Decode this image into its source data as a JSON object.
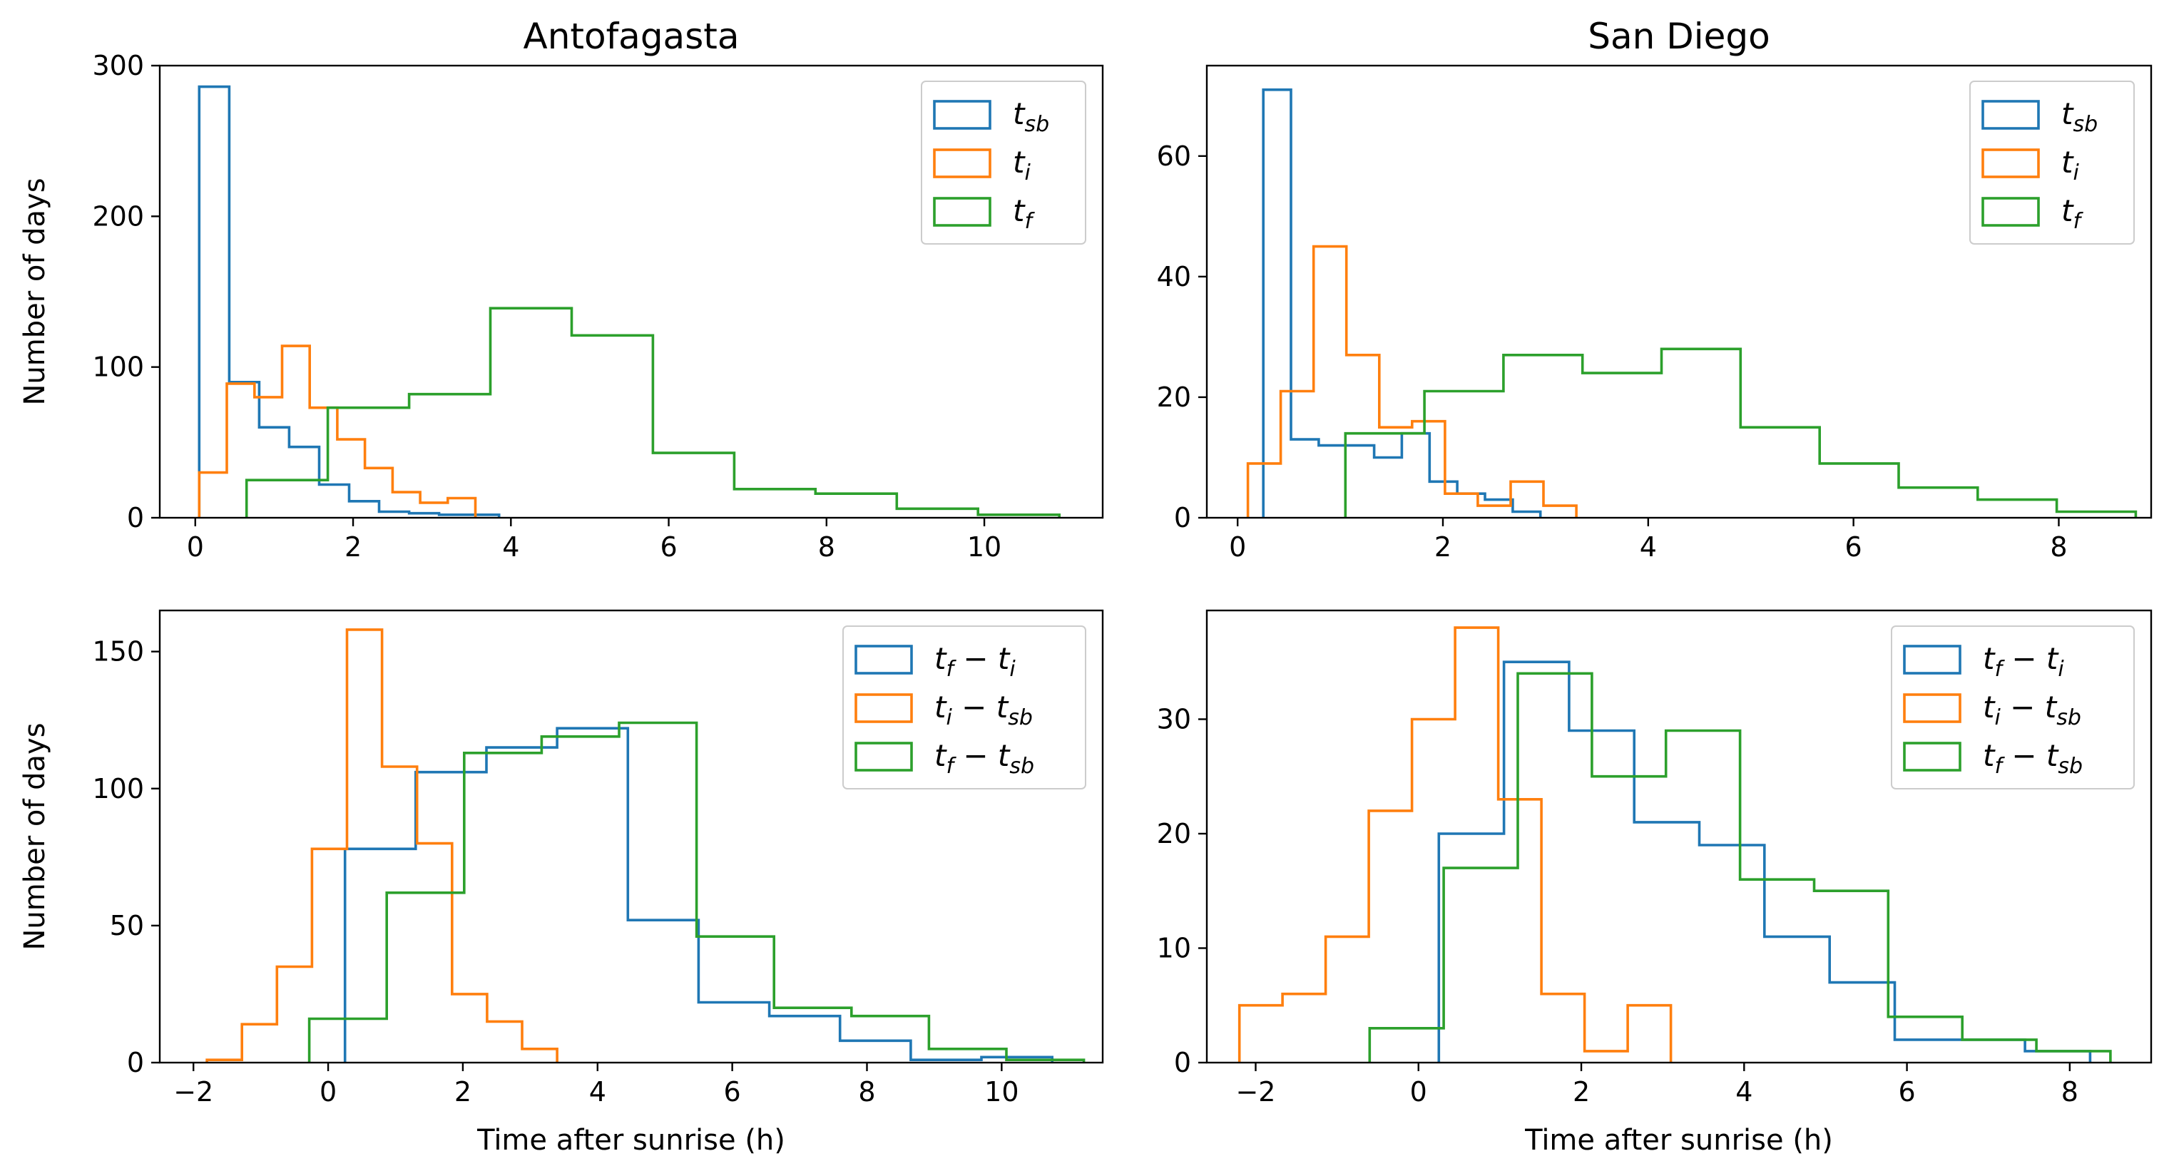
{
  "colors": {
    "tsb": "#1f77b4",
    "ti": "#ff7f0e",
    "tf": "#2ca02c"
  },
  "chart_data": [
    {
      "type": "histogram-step",
      "title": "Antofagasta",
      "xlabel": "",
      "ylabel": "Number of days",
      "xlim": [
        -0.45,
        11.5
      ],
      "ylim": [
        0,
        300
      ],
      "xticks": [
        0,
        2,
        4,
        6,
        8,
        10
      ],
      "yticks": [
        0,
        100,
        200,
        300
      ],
      "legend": "top-right",
      "series": [
        {
          "name": "t_sb",
          "label_base": "t",
          "label_sub": "sb",
          "color_key": "tsb",
          "edges": [
            0.05,
            0.43,
            0.81,
            1.19,
            1.57,
            1.95,
            2.33,
            2.71,
            3.09,
            3.47,
            3.85
          ],
          "counts": [
            286,
            90,
            60,
            47,
            22,
            11,
            4,
            3,
            2,
            2
          ]
        },
        {
          "name": "t_i",
          "label_base": "t",
          "label_sub": "i",
          "color_key": "ti",
          "edges": [
            0.05,
            0.4,
            0.75,
            1.1,
            1.45,
            1.8,
            2.15,
            2.5,
            2.85,
            3.2,
            3.55
          ],
          "counts": [
            30,
            89,
            80,
            114,
            73,
            52,
            33,
            17,
            10,
            13
          ]
        },
        {
          "name": "t_f",
          "label_base": "t",
          "label_sub": "f",
          "color_key": "tf",
          "edges": [
            0.65,
            1.68,
            2.71,
            3.74,
            4.77,
            5.8,
            6.83,
            7.86,
            8.89,
            9.92,
            10.95
          ],
          "counts": [
            25,
            73,
            82,
            139,
            121,
            43,
            19,
            16,
            6,
            2
          ]
        }
      ]
    },
    {
      "type": "histogram-step",
      "title": "San Diego",
      "xlabel": "",
      "ylabel": "",
      "xlim": [
        -0.3,
        8.9
      ],
      "ylim": [
        0,
        75
      ],
      "xticks": [
        0,
        2,
        4,
        6,
        8
      ],
      "yticks": [
        0,
        20,
        40,
        60
      ],
      "legend": "top-right",
      "series": [
        {
          "name": "t_sb",
          "label_base": "t",
          "label_sub": "sb",
          "color_key": "tsb",
          "edges": [
            0.25,
            0.52,
            0.79,
            1.06,
            1.33,
            1.6,
            1.87,
            2.14,
            2.41,
            2.68,
            2.95
          ],
          "counts": [
            71,
            13,
            12,
            12,
            10,
            14,
            6,
            4,
            3,
            1
          ]
        },
        {
          "name": "t_i",
          "label_base": "t",
          "label_sub": "i",
          "color_key": "ti",
          "edges": [
            0.1,
            0.42,
            0.74,
            1.06,
            1.38,
            1.7,
            2.02,
            2.34,
            2.66,
            2.98,
            3.3
          ],
          "counts": [
            9,
            21,
            45,
            27,
            15,
            16,
            4,
            2,
            6,
            2
          ]
        },
        {
          "name": "t_f",
          "label_base": "t",
          "label_sub": "f",
          "color_key": "tf",
          "edges": [
            1.05,
            1.82,
            2.59,
            3.36,
            4.13,
            4.9,
            5.67,
            6.44,
            7.21,
            7.98,
            8.75
          ],
          "counts": [
            14,
            21,
            27,
            24,
            28,
            15,
            9,
            5,
            3,
            1
          ]
        }
      ]
    },
    {
      "type": "histogram-step",
      "title": "",
      "xlabel": "Time after sunrise (h)",
      "ylabel": "Number of days",
      "xlim": [
        -2.5,
        11.5
      ],
      "ylim": [
        0,
        165
      ],
      "xticks": [
        -2,
        0,
        2,
        4,
        6,
        8,
        10
      ],
      "yticks": [
        0,
        50,
        100,
        150
      ],
      "legend": "top-right",
      "series": [
        {
          "name": "t_f − t_i",
          "label_parts": [
            "t",
            "f",
            " − t",
            "i"
          ],
          "color_key": "tsb",
          "edges": [
            0.25,
            1.3,
            2.35,
            3.4,
            4.45,
            5.5,
            6.55,
            7.6,
            8.65,
            9.7,
            10.75
          ],
          "counts": [
            78,
            106,
            115,
            122,
            52,
            22,
            17,
            8,
            1,
            2
          ]
        },
        {
          "name": "t_i − t_sb",
          "label_parts": [
            "t",
            "i",
            " − t",
            "sb"
          ],
          "color_key": "ti",
          "edges": [
            -1.8,
            -1.28,
            -0.76,
            -0.24,
            0.28,
            0.8,
            1.32,
            1.84,
            2.36,
            2.88,
            3.4
          ],
          "counts": [
            1,
            14,
            35,
            78,
            158,
            108,
            80,
            25,
            15,
            5
          ]
        },
        {
          "name": "t_f − t_sb",
          "label_parts": [
            "t",
            "f",
            " − t",
            "sb"
          ],
          "color_key": "tf",
          "edges": [
            -0.28,
            0.87,
            2.02,
            3.17,
            4.32,
            5.47,
            6.62,
            7.77,
            8.92,
            10.07,
            11.22
          ],
          "counts": [
            16,
            62,
            113,
            119,
            124,
            46,
            20,
            17,
            5,
            1
          ]
        }
      ]
    },
    {
      "type": "histogram-step",
      "title": "",
      "xlabel": "Time after sunrise (h)",
      "ylabel": "",
      "xlim": [
        -2.6,
        9.0
      ],
      "ylim": [
        0,
        39.5
      ],
      "xticks": [
        -2,
        0,
        2,
        4,
        6,
        8
      ],
      "yticks": [
        0,
        10,
        20,
        30
      ],
      "legend": "top-right",
      "series": [
        {
          "name": "t_f − t_i",
          "label_parts": [
            "t",
            "f",
            " − t",
            "i"
          ],
          "color_key": "tsb",
          "edges": [
            0.25,
            1.05,
            1.85,
            2.65,
            3.45,
            4.25,
            5.05,
            5.85,
            6.65,
            7.45,
            8.25
          ],
          "counts": [
            20,
            35,
            29,
            21,
            19,
            11,
            7,
            2,
            2,
            1
          ]
        },
        {
          "name": "t_i − t_sb",
          "label_parts": [
            "t",
            "i",
            " − t",
            "sb"
          ],
          "color_key": "ti",
          "edges": [
            -2.2,
            -1.67,
            -1.14,
            -0.61,
            -0.08,
            0.45,
            0.98,
            1.51,
            2.04,
            2.57,
            3.1
          ],
          "counts": [
            5,
            6,
            11,
            22,
            30,
            38,
            23,
            6,
            1,
            5
          ]
        },
        {
          "name": "t_f − t_sb",
          "label_parts": [
            "t",
            "f",
            " − t",
            "sb"
          ],
          "color_key": "tf",
          "edges": [
            -0.6,
            0.31,
            1.22,
            2.13,
            3.04,
            3.95,
            4.86,
            5.77,
            6.68,
            7.59,
            8.5
          ],
          "counts": [
            3,
            17,
            34,
            25,
            29,
            16,
            15,
            4,
            2,
            1
          ]
        }
      ]
    }
  ]
}
